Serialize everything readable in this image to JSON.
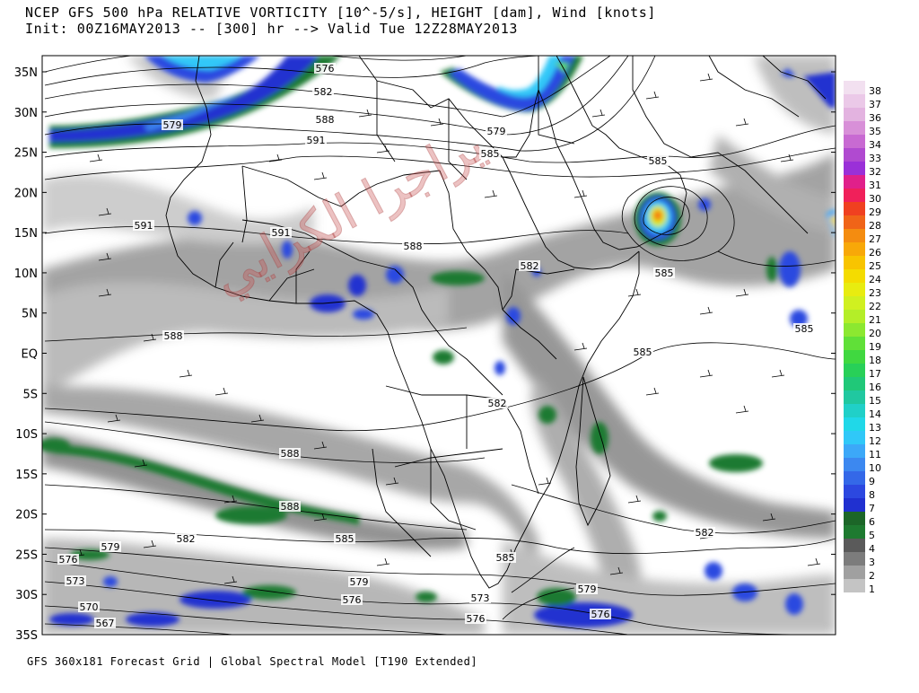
{
  "header": {
    "line1": "NCEP GFS 500 hPa RELATIVE VORTICITY [10^-5/s], HEIGHT [dam], Wind [knots]",
    "line2": "Init: 00Z16MAY2013 -- [300] hr --> Valid Tue 12Z28MAY2013"
  },
  "footer": "GFS 360x181 Forecast Grid | Global Spectral Model [T190 Extended]",
  "lat_labels": [
    "35N",
    "30N",
    "25N",
    "20N",
    "15N",
    "10N",
    "5N",
    "EQ",
    "5S",
    "10S",
    "15S",
    "20S",
    "25S",
    "30S",
    "35S"
  ],
  "colorbar": {
    "labels": [
      "38",
      "37",
      "36",
      "35",
      "34",
      "33",
      "32",
      "31",
      "30",
      "29",
      "28",
      "27",
      "26",
      "25",
      "24",
      "23",
      "22",
      "21",
      "20",
      "19",
      "18",
      "17",
      "16",
      "15",
      "14",
      "13",
      "12",
      "11",
      "10",
      "9",
      "8",
      "7",
      "6",
      "5",
      "4",
      "3",
      "2",
      "1"
    ],
    "colors": [
      "#f2e0f0",
      "#ebc9e8",
      "#e3b3e0",
      "#d890d8",
      "#c86ad2",
      "#b04ad0",
      "#9a30d8",
      "#e0208a",
      "#f0205a",
      "#f04020",
      "#f06418",
      "#f48c10",
      "#f8a808",
      "#f8c400",
      "#f4dc00",
      "#e8ec10",
      "#d0f020",
      "#b4ee28",
      "#8ce830",
      "#60e038",
      "#40d840",
      "#28d058",
      "#20c878",
      "#20c8a0",
      "#20d0c8",
      "#20d8e8",
      "#30c8f8",
      "#3ca8f8",
      "#3c88f0",
      "#3468e8",
      "#2c48e0",
      "#2030d0",
      "#1c6628",
      "#1e7a30",
      "#5a5a5a",
      "#7c7c7c",
      "#a0a0a0",
      "#c4c4c4"
    ]
  },
  "contour_labels": [
    "576",
    "582",
    "579",
    "588",
    "591",
    "579",
    "585",
    "591",
    "591",
    "588",
    "588",
    "585",
    "585",
    "585",
    "582",
    "585",
    "588",
    "588",
    "582",
    "585",
    "582",
    "579",
    "576",
    "573",
    "570",
    "567",
    "579",
    "576",
    "579",
    "576",
    "573",
    "576",
    "582",
    "585"
  ],
  "watermark": "يراجرا الكرايي"
}
